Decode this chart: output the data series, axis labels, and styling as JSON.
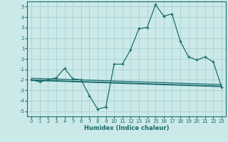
{
  "xlabel": "Humidex (Indice chaleur)",
  "background_color": "#cce9e9",
  "grid_color": "#aad4d4",
  "line_color": "#1a6b6b",
  "xlim": [
    -0.5,
    23.5
  ],
  "ylim": [
    -5.5,
    5.5
  ],
  "yticks": [
    -5,
    -4,
    -3,
    -2,
    -1,
    0,
    1,
    2,
    3,
    4,
    5
  ],
  "xticks": [
    0,
    1,
    2,
    3,
    4,
    5,
    6,
    7,
    8,
    9,
    10,
    11,
    12,
    13,
    14,
    15,
    16,
    17,
    18,
    19,
    20,
    21,
    22,
    23
  ],
  "main_x": [
    0,
    1,
    2,
    3,
    4,
    5,
    6,
    7,
    8,
    9,
    10,
    11,
    12,
    13,
    14,
    15,
    16,
    17,
    18,
    19,
    20,
    21,
    22,
    23
  ],
  "main_y": [
    -2.0,
    -2.2,
    -2.0,
    -1.8,
    -0.9,
    -1.9,
    -2.0,
    -3.5,
    -4.8,
    -4.6,
    -0.5,
    -0.5,
    0.9,
    2.9,
    3.0,
    5.2,
    4.1,
    4.3,
    1.7,
    0.2,
    -0.1,
    0.2,
    -0.3,
    -2.7
  ],
  "trend1_x": [
    0,
    23
  ],
  "trend1_y": [
    -2.0,
    -2.6
  ],
  "trend2_x": [
    0,
    23
  ],
  "trend2_y": [
    -1.85,
    -2.45
  ],
  "trend3_x": [
    0,
    23
  ],
  "trend3_y": [
    -2.05,
    -2.65
  ]
}
